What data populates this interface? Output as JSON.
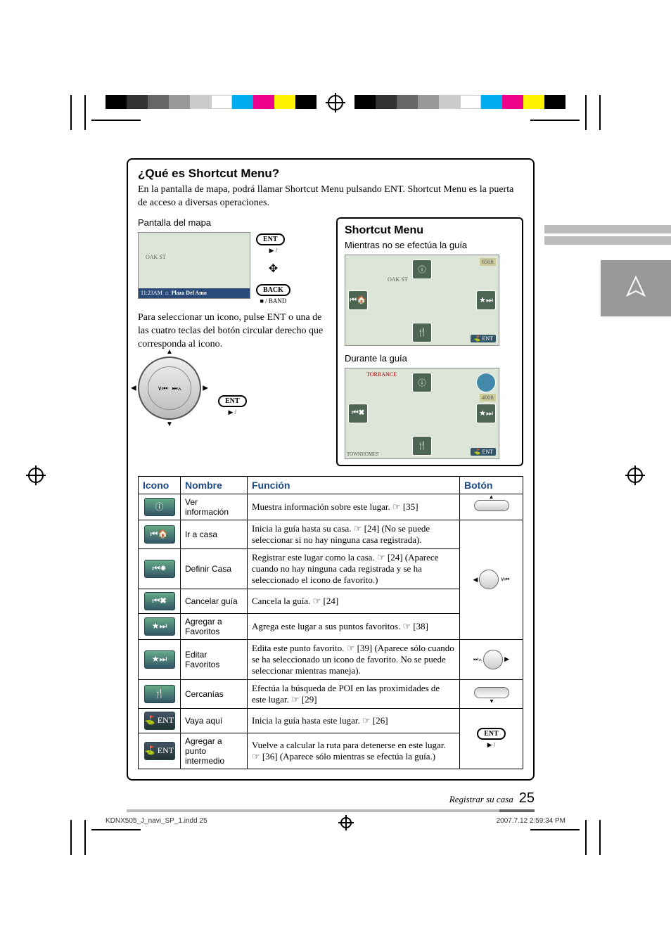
{
  "colorbar": [
    "#000000",
    "#333333",
    "#666666",
    "#999999",
    "#cccccc",
    "#ffffff",
    "#00aeef",
    "#ec008c",
    "#fff200",
    "#000000"
  ],
  "section": {
    "title": "¿Qué es Shortcut Menu?",
    "intro": "En la pantalla de mapa, podrá llamar Shortcut Menu pulsando ENT. Shortcut Menu es la puerta de acceso a diversas operaciones.",
    "map_label": "Pantalla del mapa",
    "map_street": "OAK ST",
    "map_time": "11:23AM",
    "map_place": "Plaza Del Amo",
    "ent_btn": "ENT",
    "ent_sub": "▶ / ",
    "back_btn": "BACK",
    "back_sub": "■ / BAND",
    "select_text": "Para seleccionar un icono, pulse ENT o una de las cuatro teclas del botón circular derecho que corresponda al icono."
  },
  "shortcut": {
    "title": "Shortcut Menu",
    "no_guide": "Mientras no se efectúa la guía",
    "during_guide": "Durante la guía",
    "map2_label1": "OAK ST",
    "map2_dist": "650ft",
    "map3_label": "TORRANCE",
    "map3_dist": "400ft",
    "map3_sub": "TOWNHOMES",
    "ent_tag": "ENT"
  },
  "table": {
    "headers": {
      "icono": "Icono",
      "nombre": "Nombre",
      "funcion": "Función",
      "boton": "Botón"
    },
    "rows": [
      {
        "icon": "ⓘ",
        "nombre": "Ver información",
        "funcion": "Muestra información sobre este lugar. ☞ [35]"
      },
      {
        "icon": "⏮🏠",
        "nombre": "Ir a casa",
        "funcion": "Inicia la guía hasta su casa. ☞ [24] (No se puede seleccionar si no hay ninguna casa registrada)."
      },
      {
        "icon": "⏮✸",
        "nombre": "Definir Casa",
        "funcion": "Registrar este lugar como la casa. ☞ [24] (Aparece cuando no hay ninguna cada registrada y se ha seleccionado el icono de favorito.)"
      },
      {
        "icon": "⏮✖",
        "nombre": "Cancelar guía",
        "funcion": "Cancela la guía. ☞ [24]"
      },
      {
        "icon": "★⏭",
        "nombre": "Agregar a Favoritos",
        "funcion": "Agrega este lugar a sus puntos favoritos. ☞ [38]"
      },
      {
        "icon": "★⏭",
        "nombre": "Editar Favoritos",
        "funcion": "Edita este punto favorito. ☞ [39] (Aparece sólo cuando se ha seleccionado un icono de favorito. No se puede seleccionar mientras maneja)."
      },
      {
        "icon": "🍴",
        "nombre": "Cercanías",
        "funcion": "Efectúa la búsqueda de POI en las proximidades de este lugar. ☞ [29]"
      },
      {
        "icon": "⛳ ENT",
        "nombre": "Vaya aquí",
        "funcion": "Inicia la guía hasta este lugar. ☞ [26]"
      },
      {
        "icon": "⛳ ENT",
        "nombre": "Agregar a punto intermedio",
        "funcion": "Vuelve a calcular la ruta para detenerse en este lugar. ☞ [36] (Aparece sólo mientras se efectúa la guía.)"
      }
    ]
  },
  "footer": {
    "section": "Registrar su casa",
    "page": "25"
  },
  "printline": {
    "file": "KDNX505_J_navi_SP_1.indd   25",
    "date": "2007.7.12   2:59:34 PM"
  }
}
